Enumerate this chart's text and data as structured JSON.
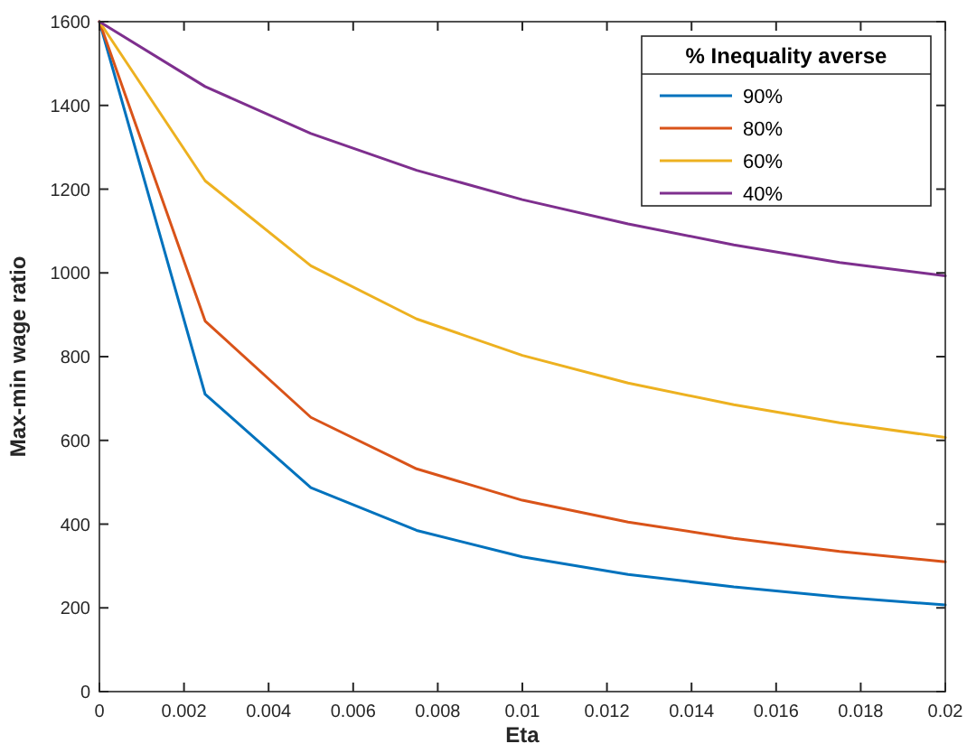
{
  "chart_data": {
    "type": "line",
    "xlabel": "Eta",
    "ylabel": "Max-min wage ratio",
    "legend_title": "% Inequality averse",
    "legend": "top right",
    "grid": false,
    "line_style": "solid",
    "x": [
      0,
      0.0025,
      0.005,
      0.0075,
      0.01,
      0.0125,
      0.015,
      0.0175,
      0.02
    ],
    "xlim": [
      0,
      0.02
    ],
    "xticks": [
      0,
      0.002,
      0.004,
      0.006,
      0.008,
      0.01,
      0.012,
      0.014,
      0.016,
      0.018,
      0.02
    ],
    "ylim": [
      0,
      1600
    ],
    "yticks": [
      0,
      200,
      400,
      600,
      800,
      1000,
      1200,
      1400,
      1600
    ],
    "series": [
      {
        "name": "90%",
        "color": "#0072bd",
        "values": [
          1600,
          710,
          487,
          385,
          322,
          280,
          250,
          226,
          207
        ]
      },
      {
        "name": "80%",
        "color": "#d95319",
        "values": [
          1600,
          885,
          655,
          532,
          457,
          405,
          366,
          335,
          310
        ]
      },
      {
        "name": "60%",
        "color": "#edb120",
        "values": [
          1600,
          1220,
          1017,
          890,
          803,
          737,
          685,
          642,
          607
        ]
      },
      {
        "name": "40%",
        "color": "#7e2f8e",
        "values": [
          1600,
          1445,
          1333,
          1245,
          1175,
          1117,
          1067,
          1025,
          993
        ]
      }
    ]
  }
}
